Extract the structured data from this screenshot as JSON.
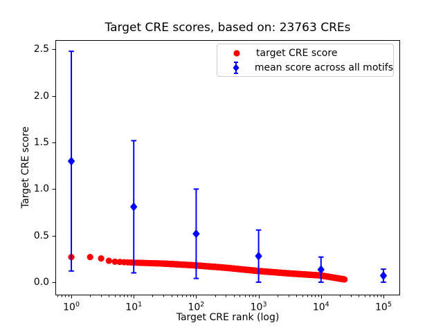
{
  "chart_data": {
    "type": "scatter",
    "title": "Target CRE scores, based on: 23763 CREs",
    "xlabel": "Target CRE rank (log)",
    "ylabel": "Target CRE score",
    "x_scale": "log",
    "grid": false,
    "legend_position": "upper right",
    "x_tick_exponents": [
      0,
      1,
      2,
      3,
      4,
      5
    ],
    "x_tick_base": "10",
    "y_ticks": [
      0.0,
      0.5,
      1.0,
      1.5,
      2.0,
      2.5
    ],
    "y_tick_labels": [
      "0.0",
      "0.5",
      "1.0",
      "1.5",
      "2.0",
      "2.5"
    ],
    "x_log_range": [
      -0.2556,
      5.2667
    ],
    "y_range": [
      -0.1413,
      2.6
    ],
    "n_cres": 23763,
    "series": [
      {
        "name": "target CRE score",
        "color": "#ff0000",
        "marker": "circle",
        "rank_min": 1,
        "rank_max": 23763,
        "points_sample": [
          [
            1,
            0.27
          ],
          [
            2,
            0.27
          ],
          [
            3,
            0.255
          ],
          [
            4,
            0.23
          ],
          [
            5,
            0.22
          ],
          [
            7,
            0.215
          ],
          [
            10,
            0.21
          ],
          [
            30,
            0.2
          ],
          [
            100,
            0.18
          ],
          [
            300,
            0.155
          ],
          [
            1000,
            0.12
          ],
          [
            3000,
            0.095
          ],
          [
            10000,
            0.072
          ],
          [
            23763,
            0.03
          ]
        ]
      },
      {
        "name": "mean score across all motifs",
        "color": "#0000ff",
        "marker": "diamond",
        "x": [
          1,
          10,
          100,
          1000,
          10000,
          100000
        ],
        "y": [
          1.3,
          0.81,
          0.52,
          0.28,
          0.135,
          0.07
        ],
        "yerr": [
          1.18,
          0.71,
          0.48,
          0.28,
          0.135,
          0.07
        ]
      }
    ]
  }
}
